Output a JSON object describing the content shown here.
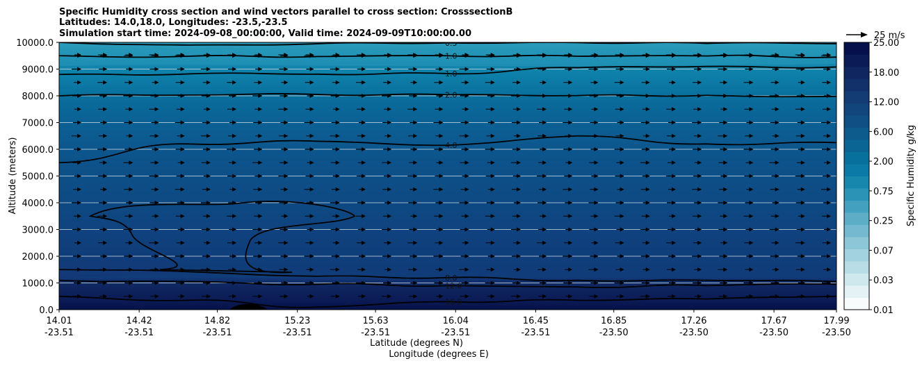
{
  "chart_data": {
    "type": "cross-section",
    "title_lines": [
      "Specific Humidity cross section and wind vectors parallel to cross section: CrosssectionB",
      "Latitudes: 14.0,18.0, Longitudes: -23.5,-23.5",
      "Simulation start time: 2024-09-08_00:00:00, Valid time: 2024-09-09T10:00:00.00"
    ],
    "xlabel_lat": "Latitude (degrees N)",
    "xlabel_lon": "Longitude (degrees E)",
    "ylabel": "Altitude (meters)",
    "ylim": [
      0,
      10000
    ],
    "x_ticks": [
      {
        "lat": "14.01",
        "lon": "-23.51"
      },
      {
        "lat": "14.42",
        "lon": "-23.51"
      },
      {
        "lat": "14.82",
        "lon": "-23.51"
      },
      {
        "lat": "15.23",
        "lon": "-23.51"
      },
      {
        "lat": "15.63",
        "lon": "-23.51"
      },
      {
        "lat": "16.04",
        "lon": "-23.51"
      },
      {
        "lat": "16.45",
        "lon": "-23.51"
      },
      {
        "lat": "16.85",
        "lon": "-23.50"
      },
      {
        "lat": "17.26",
        "lon": "-23.50"
      },
      {
        "lat": "17.67",
        "lon": "-23.50"
      },
      {
        "lat": "17.99",
        "lon": "-23.50"
      }
    ],
    "y_ticks": [
      "0.0",
      "1000.0",
      "2000.0",
      "3000.0",
      "4000.0",
      "5000.0",
      "6000.0",
      "7000.0",
      "8000.0",
      "9000.0",
      "10000.0"
    ],
    "colorbar": {
      "label": "Specific Humidity g/kg",
      "ticks": [
        "0.01",
        "0.03",
        "0.07",
        "0.25",
        "0.75",
        "2.00",
        "6.00",
        "12.00",
        "18.00",
        "25.00"
      ],
      "colors": [
        "#f7fbfc",
        "#e4f2f5",
        "#cfe8ee",
        "#b9dde7",
        "#a2d2df",
        "#8cc6d7",
        "#74b9cf",
        "#5dadc7",
        "#44a0bf",
        "#2a93b6",
        "#1787ae",
        "#0b7aa6",
        "#08709c",
        "#0a6594",
        "#0d5b8c",
        "#104f84",
        "#12457c",
        "#133b74",
        "#12316a",
        "#0f2660",
        "#0b1b55",
        "#06114b"
      ]
    },
    "quiver_key": {
      "label": "25 m/s",
      "value": 25
    },
    "contours": [
      {
        "label": "0.5",
        "level": 0.5,
        "altitudes_m": [
          10000,
          9900,
          9950,
          9980,
          9990,
          9960,
          9950
        ]
      },
      {
        "label": "1.0",
        "level": 1.0,
        "altitudes_m": [
          9500,
          9480,
          9470,
          9500,
          9480,
          9490,
          9450
        ]
      },
      {
        "label": "1.0",
        "level": 1.0,
        "altitudes_m": [
          8800,
          8820,
          8810,
          8830,
          9050,
          9100,
          9080
        ]
      },
      {
        "label": "2.0",
        "level": 2.0,
        "altitudes_m": [
          8000,
          8030,
          8050,
          8040,
          8010,
          8020,
          7980
        ]
      },
      {
        "label": "4.0",
        "level": 4.0,
        "altitudes_m": [
          5500,
          6200,
          6300,
          6150,
          6500,
          6200,
          6250
        ]
      },
      {
        "label": "8.0",
        "level": 8.0,
        "altitudes_m": [
          1500,
          1420,
          1250,
          1200,
          1100,
          1100,
          1050
        ]
      },
      {
        "label": "12.0",
        "level": 12.0,
        "altitudes_m": [
          1100,
          1050,
          950,
          900,
          850,
          900,
          950
        ]
      },
      {
        "label": "16.0",
        "level": 16.0,
        "altitudes_m": [
          500,
          350,
          100,
          300,
          350,
          400,
          500
        ]
      }
    ],
    "contour_labels_shown": [
      "0.5",
      "1.0",
      "2.0",
      "4.0",
      "8.0",
      "12.0",
      "16.0",
      "16.0",
      "16.0",
      "16.0",
      "16.0",
      "16.0",
      "16.0",
      "16.0",
      "16.0",
      "16.0",
      "0.5"
    ],
    "wind": {
      "direction": "positive along section",
      "rows_altitudes_m": [
        10000,
        9500,
        9000,
        8500,
        8000,
        7500,
        7000,
        6500,
        6000,
        5500,
        5000,
        4500,
        4000,
        3500,
        3000,
        2500,
        2000,
        1500,
        1000,
        500
      ]
    }
  }
}
